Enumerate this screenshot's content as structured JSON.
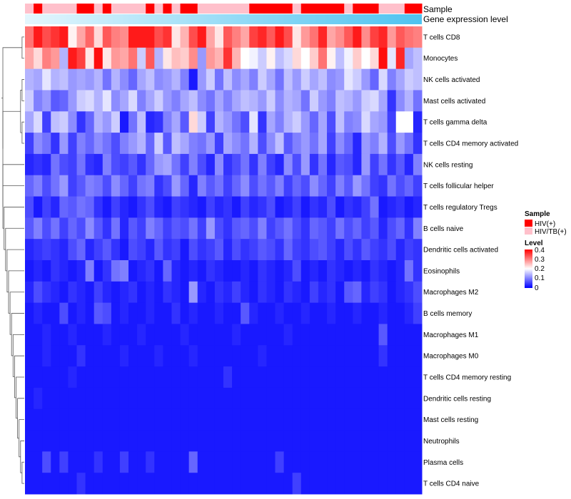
{
  "chart_data": {
    "type": "heatmap",
    "title": "",
    "annotation_rows": [
      "Sample",
      "Gene expression level"
    ],
    "rows": [
      "T cells CD8",
      "Monocytes",
      "NK cells activated",
      "Mast cells activated",
      "T cells gamma delta",
      "T cells CD4 memory activated",
      "NK cells resting",
      "T cells follicular helper",
      "T cells regulatory  Tregs",
      "B cells naive",
      "Dendritic cells activated",
      "Eosinophils",
      "Macrophages M2",
      "B cells memory",
      "Macrophages M1",
      "Macrophages M0",
      "T cells CD4 memory resting",
      "Dendritic cells resting",
      "Mast cells resting",
      "Neutrophils",
      "Plasma cells",
      "T cells CD4 naive"
    ],
    "n_samples": 46,
    "sample_groups": [
      "HIV/TB(+)",
      "HIV(+)",
      "HIV/TB(+)",
      "HIV/TB(+)",
      "HIV/TB(+)",
      "HIV/TB(+)",
      "HIV(+)",
      "HIV(+)",
      "HIV/TB(+)",
      "HIV(+)",
      "HIV/TB(+)",
      "HIV/TB(+)",
      "HIV/TB(+)",
      "HIV/TB(+)",
      "HIV(+)",
      "HIV/TB(+)",
      "HIV(+)",
      "HIV/TB(+)",
      "HIV(+)",
      "HIV(+)",
      "HIV/TB(+)",
      "HIV/TB(+)",
      "HIV/TB(+)",
      "HIV/TB(+)",
      "HIV/TB(+)",
      "HIV/TB(+)",
      "HIV(+)",
      "HIV(+)",
      "HIV(+)",
      "HIV(+)",
      "HIV(+)",
      "HIV/TB(+)",
      "HIV(+)",
      "HIV(+)",
      "HIV(+)",
      "HIV(+)",
      "HIV(+)",
      "HIV/TB(+)",
      "HIV(+)",
      "HIV(+)",
      "HIV(+)",
      "HIV/TB(+)",
      "HIV/TB(+)",
      "HIV/TB(+)",
      "HIV(+)",
      "HIV(+)"
    ],
    "color_scale": {
      "min": 0,
      "max": 0.4,
      "colors": [
        "#0000ff",
        "#ffffff",
        "#ff0000"
      ],
      "breaks": [
        0,
        0.2,
        0.4
      ],
      "ticks": [
        0,
        0.1,
        0.2,
        0.3,
        0.4
      ]
    },
    "values": [
      [
        0.31,
        0.38,
        0.34,
        0.36,
        0.38,
        0.21,
        0.27,
        0.32,
        0.23,
        0.33,
        0.3,
        0.29,
        0.38,
        0.38,
        0.38,
        0.34,
        0.36,
        0.22,
        0.26,
        0.34,
        0.38,
        0.27,
        0.22,
        0.33,
        0.3,
        0.27,
        0.35,
        0.37,
        0.33,
        0.38,
        0.34,
        0.22,
        0.28,
        0.31,
        0.37,
        0.27,
        0.29,
        0.33,
        0.38,
        0.29,
        0.35,
        0.37,
        0.28,
        0.33,
        0.31,
        0.3
      ],
      [
        0.27,
        0.23,
        0.3,
        0.28,
        0.14,
        0.38,
        0.35,
        0.22,
        0.39,
        0.22,
        0.28,
        0.27,
        0.31,
        0.16,
        0.33,
        0.14,
        0.22,
        0.25,
        0.24,
        0.29,
        0.12,
        0.28,
        0.26,
        0.36,
        0.26,
        0.2,
        0.19,
        0.16,
        0.21,
        0.15,
        0.17,
        0.23,
        0.2,
        0.24,
        0.31,
        0.21,
        0.15,
        0.19,
        0.24,
        0.2,
        0.23,
        0.39,
        0.18,
        0.37,
        0.13,
        0.15
      ],
      [
        0.14,
        0.13,
        0.18,
        0.14,
        0.15,
        0.12,
        0.13,
        0.12,
        0.14,
        0.09,
        0.14,
        0.11,
        0.08,
        0.13,
        0.15,
        0.11,
        0.12,
        0.14,
        0.1,
        0.02,
        0.12,
        0.16,
        0.09,
        0.15,
        0.11,
        0.13,
        0.1,
        0.16,
        0.13,
        0.09,
        0.15,
        0.12,
        0.16,
        0.13,
        0.15,
        0.11,
        0.12,
        0.18,
        0.16,
        0.12,
        0.08,
        0.17,
        0.1,
        0.13,
        0.16,
        0.15
      ],
      [
        0.16,
        0.1,
        0.12,
        0.07,
        0.08,
        0.12,
        0.16,
        0.17,
        0.14,
        0.18,
        0.11,
        0.13,
        0.17,
        0.1,
        0.13,
        0.16,
        0.12,
        0.1,
        0.13,
        0.15,
        0.11,
        0.09,
        0.13,
        0.1,
        0.13,
        0.15,
        0.14,
        0.12,
        0.16,
        0.11,
        0.14,
        0.13,
        0.09,
        0.16,
        0.12,
        0.1,
        0.15,
        0.14,
        0.12,
        0.16,
        0.17,
        0.13,
        0.04,
        0.11,
        0.14,
        0.09
      ],
      [
        0.13,
        0.17,
        0.05,
        0.15,
        0.16,
        0.11,
        0.04,
        0.08,
        0.14,
        0.12,
        0.16,
        0.02,
        0.09,
        0.15,
        0.03,
        0.04,
        0.1,
        0.13,
        0.07,
        0.23,
        0.16,
        0.05,
        0.14,
        0.12,
        0.09,
        0.06,
        0.18,
        0.04,
        0.13,
        0.1,
        0.14,
        0.16,
        0.12,
        0.08,
        0.13,
        0.06,
        0.15,
        0.1,
        0.11,
        0.17,
        0.13,
        0.12,
        0.05,
        0.2,
        0.2,
        0.03
      ],
      [
        0.05,
        0.11,
        0.09,
        0.04,
        0.12,
        0.05,
        0.1,
        0.08,
        0.11,
        0.09,
        0.06,
        0.1,
        0.12,
        0.14,
        0.08,
        0.16,
        0.07,
        0.15,
        0.13,
        0.1,
        0.09,
        0.12,
        0.05,
        0.13,
        0.11,
        0.09,
        0.14,
        0.06,
        0.11,
        0.15,
        0.07,
        0.1,
        0.12,
        0.09,
        0.13,
        0.05,
        0.11,
        0.08,
        0.03,
        0.12,
        0.1,
        0.14,
        0.06,
        0.12,
        0.09,
        0.04
      ],
      [
        0.03,
        0.04,
        0.03,
        0.09,
        0.06,
        0.05,
        0.09,
        0.04,
        0.03,
        0.1,
        0.06,
        0.05,
        0.07,
        0.04,
        0.08,
        0.12,
        0.13,
        0.09,
        0.05,
        0.1,
        0.06,
        0.03,
        0.11,
        0.04,
        0.06,
        0.09,
        0.04,
        0.1,
        0.05,
        0.03,
        0.11,
        0.06,
        0.12,
        0.04,
        0.09,
        0.03,
        0.07,
        0.06,
        0.03,
        0.12,
        0.05,
        0.09,
        0.04,
        0.07,
        0.03,
        0.1
      ],
      [
        0.08,
        0.1,
        0.06,
        0.09,
        0.12,
        0.05,
        0.07,
        0.1,
        0.09,
        0.06,
        0.11,
        0.08,
        0.05,
        0.09,
        0.1,
        0.04,
        0.06,
        0.12,
        0.08,
        0.03,
        0.1,
        0.07,
        0.09,
        0.05,
        0.08,
        0.11,
        0.06,
        0.09,
        0.07,
        0.1,
        0.05,
        0.08,
        0.06,
        0.11,
        0.08,
        0.05,
        0.1,
        0.07,
        0.12,
        0.09,
        0.05,
        0.04,
        0.09,
        0.06,
        0.08,
        0.05
      ],
      [
        0.06,
        0.02,
        0.05,
        0.03,
        0.08,
        0.07,
        0.09,
        0.08,
        0.04,
        0.02,
        0.05,
        0.03,
        0.02,
        0.04,
        0.06,
        0.03,
        0.02,
        0.05,
        0.04,
        0.03,
        0.02,
        0.05,
        0.03,
        0.04,
        0.02,
        0.05,
        0.03,
        0.04,
        0.06,
        0.02,
        0.03,
        0.05,
        0.02,
        0.04,
        0.03,
        0.06,
        0.02,
        0.04,
        0.03,
        0.05,
        0.09,
        0.02,
        0.03,
        0.04,
        0.02,
        0.03
      ],
      [
        0.07,
        0.1,
        0.06,
        0.09,
        0.05,
        0.08,
        0.06,
        0.11,
        0.07,
        0.04,
        0.09,
        0.03,
        0.07,
        0.05,
        0.1,
        0.08,
        0.05,
        0.07,
        0.06,
        0.09,
        0.05,
        0.12,
        0.06,
        0.04,
        0.07,
        0.08,
        0.06,
        0.1,
        0.05,
        0.07,
        0.09,
        0.06,
        0.04,
        0.08,
        0.07,
        0.05,
        0.09,
        0.06,
        0.08,
        0.05,
        0.07,
        0.03,
        0.06,
        0.08,
        0.04,
        0.1
      ],
      [
        0.03,
        0.04,
        0.05,
        0.04,
        0.03,
        0.06,
        0.08,
        0.03,
        0.05,
        0.07,
        0.04,
        0.02,
        0.06,
        0.05,
        0.03,
        0.07,
        0.04,
        0.05,
        0.02,
        0.06,
        0.04,
        0.05,
        0.07,
        0.03,
        0.06,
        0.04,
        0.05,
        0.07,
        0.06,
        0.04,
        0.08,
        0.05,
        0.04,
        0.06,
        0.07,
        0.05,
        0.03,
        0.06,
        0.04,
        0.07,
        0.05,
        0.04,
        0.06,
        0.03,
        0.05,
        0.04
      ],
      [
        0.02,
        0.03,
        0.02,
        0.04,
        0.03,
        0.02,
        0.03,
        0.1,
        0.02,
        0.04,
        0.09,
        0.1,
        0.02,
        0.03,
        0.04,
        0.02,
        0.08,
        0.03,
        0.02,
        0.03,
        0.02,
        0.04,
        0.03,
        0.02,
        0.02,
        0.03,
        0.02,
        0.04,
        0.03,
        0.02,
        0.03,
        0.06,
        0.02,
        0.03,
        0.02,
        0.04,
        0.03,
        0.02,
        0.03,
        0.02,
        0.04,
        0.03,
        0.02,
        0.03,
        0.09,
        0.04
      ],
      [
        0.03,
        0.06,
        0.04,
        0.03,
        0.02,
        0.04,
        0.03,
        0.02,
        0.05,
        0.03,
        0.02,
        0.03,
        0.04,
        0.02,
        0.03,
        0.02,
        0.04,
        0.03,
        0.02,
        0.12,
        0.03,
        0.02,
        0.04,
        0.03,
        0.05,
        0.03,
        0.02,
        0.04,
        0.03,
        0.02,
        0.04,
        0.03,
        0.02,
        0.05,
        0.03,
        0.04,
        0.02,
        0.07,
        0.08,
        0.03,
        0.05,
        0.04,
        0.02,
        0.03,
        0.04,
        0.06
      ],
      [
        0.02,
        0.03,
        0.02,
        0.02,
        0.06,
        0.02,
        0.03,
        0.02,
        0.07,
        0.06,
        0.02,
        0.03,
        0.02,
        0.02,
        0.03,
        0.02,
        0.02,
        0.04,
        0.02,
        0.03,
        0.02,
        0.02,
        0.03,
        0.02,
        0.02,
        0.07,
        0.03,
        0.02,
        0.02,
        0.03,
        0.02,
        0.02,
        0.03,
        0.02,
        0.02,
        0.03,
        0.02,
        0.02,
        0.03,
        0.02,
        0.02,
        0.03,
        0.02,
        0.02,
        0.03,
        0.05
      ],
      [
        0.02,
        0.02,
        0.03,
        0.02,
        0.02,
        0.03,
        0.02,
        0.02,
        0.02,
        0.03,
        0.02,
        0.02,
        0.02,
        0.03,
        0.02,
        0.02,
        0.02,
        0.02,
        0.03,
        0.02,
        0.02,
        0.02,
        0.02,
        0.02,
        0.03,
        0.02,
        0.02,
        0.02,
        0.02,
        0.02,
        0.03,
        0.02,
        0.02,
        0.02,
        0.02,
        0.02,
        0.02,
        0.02,
        0.02,
        0.02,
        0.02,
        0.07,
        0.02,
        0.02,
        0.02,
        0.02
      ],
      [
        0.02,
        0.02,
        0.03,
        0.02,
        0.02,
        0.02,
        0.04,
        0.02,
        0.02,
        0.02,
        0.02,
        0.03,
        0.02,
        0.02,
        0.02,
        0.03,
        0.02,
        0.02,
        0.02,
        0.03,
        0.02,
        0.02,
        0.02,
        0.02,
        0.02,
        0.02,
        0.02,
        0.03,
        0.02,
        0.02,
        0.02,
        0.02,
        0.02,
        0.02,
        0.02,
        0.02,
        0.02,
        0.02,
        0.02,
        0.02,
        0.02,
        0.04,
        0.02,
        0.02,
        0.02,
        0.02
      ],
      [
        0.02,
        0.02,
        0.02,
        0.02,
        0.02,
        0.03,
        0.02,
        0.02,
        0.02,
        0.02,
        0.02,
        0.02,
        0.02,
        0.02,
        0.02,
        0.02,
        0.02,
        0.02,
        0.02,
        0.02,
        0.02,
        0.02,
        0.02,
        0.04,
        0.02,
        0.02,
        0.02,
        0.02,
        0.02,
        0.02,
        0.02,
        0.02,
        0.02,
        0.02,
        0.02,
        0.02,
        0.02,
        0.02,
        0.02,
        0.02,
        0.02,
        0.02,
        0.02,
        0.02,
        0.02,
        0.02
      ],
      [
        0.02,
        0.03,
        0.02,
        0.02,
        0.02,
        0.02,
        0.02,
        0.02,
        0.02,
        0.02,
        0.02,
        0.02,
        0.02,
        0.02,
        0.02,
        0.02,
        0.02,
        0.02,
        0.02,
        0.02,
        0.02,
        0.02,
        0.02,
        0.02,
        0.02,
        0.02,
        0.02,
        0.02,
        0.02,
        0.02,
        0.02,
        0.02,
        0.02,
        0.02,
        0.02,
        0.02,
        0.02,
        0.02,
        0.02,
        0.02,
        0.02,
        0.02,
        0.02,
        0.02,
        0.02,
        0.02
      ],
      [
        0.02,
        0.02,
        0.02,
        0.02,
        0.02,
        0.02,
        0.02,
        0.02,
        0.02,
        0.02,
        0.02,
        0.02,
        0.02,
        0.02,
        0.02,
        0.02,
        0.02,
        0.02,
        0.02,
        0.02,
        0.02,
        0.02,
        0.02,
        0.02,
        0.02,
        0.02,
        0.02,
        0.02,
        0.02,
        0.02,
        0.02,
        0.02,
        0.02,
        0.02,
        0.02,
        0.02,
        0.02,
        0.02,
        0.02,
        0.02,
        0.02,
        0.02,
        0.02,
        0.02,
        0.02,
        0.02
      ],
      [
        0.02,
        0.02,
        0.02,
        0.02,
        0.02,
        0.02,
        0.02,
        0.02,
        0.02,
        0.02,
        0.02,
        0.02,
        0.02,
        0.02,
        0.02,
        0.02,
        0.02,
        0.02,
        0.02,
        0.02,
        0.02,
        0.02,
        0.02,
        0.02,
        0.02,
        0.02,
        0.02,
        0.02,
        0.02,
        0.02,
        0.02,
        0.02,
        0.02,
        0.02,
        0.02,
        0.02,
        0.02,
        0.02,
        0.02,
        0.02,
        0.02,
        0.02,
        0.02,
        0.02,
        0.02,
        0.02
      ],
      [
        0.02,
        0.02,
        0.06,
        0.02,
        0.05,
        0.02,
        0.02,
        0.02,
        0.04,
        0.02,
        0.02,
        0.05,
        0.02,
        0.02,
        0.04,
        0.02,
        0.02,
        0.02,
        0.02,
        0.08,
        0.02,
        0.02,
        0.02,
        0.02,
        0.02,
        0.02,
        0.02,
        0.02,
        0.02,
        0.05,
        0.02,
        0.02,
        0.02,
        0.02,
        0.02,
        0.02,
        0.02,
        0.02,
        0.02,
        0.02,
        0.02,
        0.02,
        0.02,
        0.02,
        0.02,
        0.02
      ],
      [
        0.02,
        0.02,
        0.02,
        0.02,
        0.02,
        0.02,
        0.04,
        0.02,
        0.02,
        0.02,
        0.02,
        0.02,
        0.02,
        0.02,
        0.02,
        0.02,
        0.02,
        0.02,
        0.02,
        0.02,
        0.02,
        0.02,
        0.02,
        0.02,
        0.02,
        0.02,
        0.02,
        0.02,
        0.02,
        0.02,
        0.02,
        0.05,
        0.02,
        0.02,
        0.02,
        0.02,
        0.02,
        0.02,
        0.02,
        0.02,
        0.02,
        0.02,
        0.02,
        0.02,
        0.02,
        0.02
      ]
    ],
    "legend": {
      "sample": {
        "title": "Sample",
        "items": [
          {
            "label": "HIV(+)",
            "color": "#ff0000"
          },
          {
            "label": "HIV/TB(+)",
            "color": "#ffc0cb"
          }
        ]
      },
      "level": {
        "title": "Level",
        "tick_labels": [
          "0.4",
          "0.3",
          "0.2",
          "0.1",
          "0"
        ]
      }
    },
    "gene_bar_colors": [
      "#e4f6fd",
      "#4fc3f0"
    ],
    "colors": {
      "sample_hiv": "#ff0000",
      "sample_hivtb": "#ffc0cb"
    }
  }
}
